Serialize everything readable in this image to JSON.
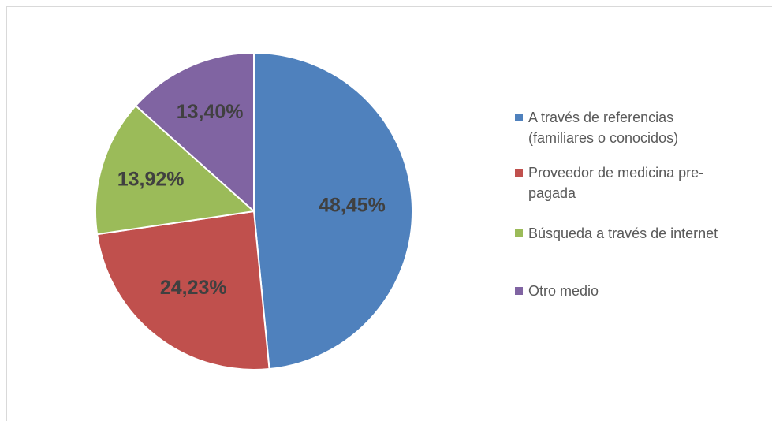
{
  "chart_data": {
    "type": "pie",
    "categories": [
      "A través de referencias (familiares o conocidos)",
      "Proveedor de medicina pre-pagada",
      "Búsqueda a través de internet",
      "Otro medio"
    ],
    "values": [
      48.45,
      24.23,
      13.92,
      13.4
    ],
    "value_labels": [
      "48,45%",
      "24,23%",
      "13,92%",
      "13,40%"
    ],
    "colors": [
      "#4f81bd",
      "#c0504d",
      "#9bbb59",
      "#8064a2"
    ],
    "legend": "right"
  }
}
